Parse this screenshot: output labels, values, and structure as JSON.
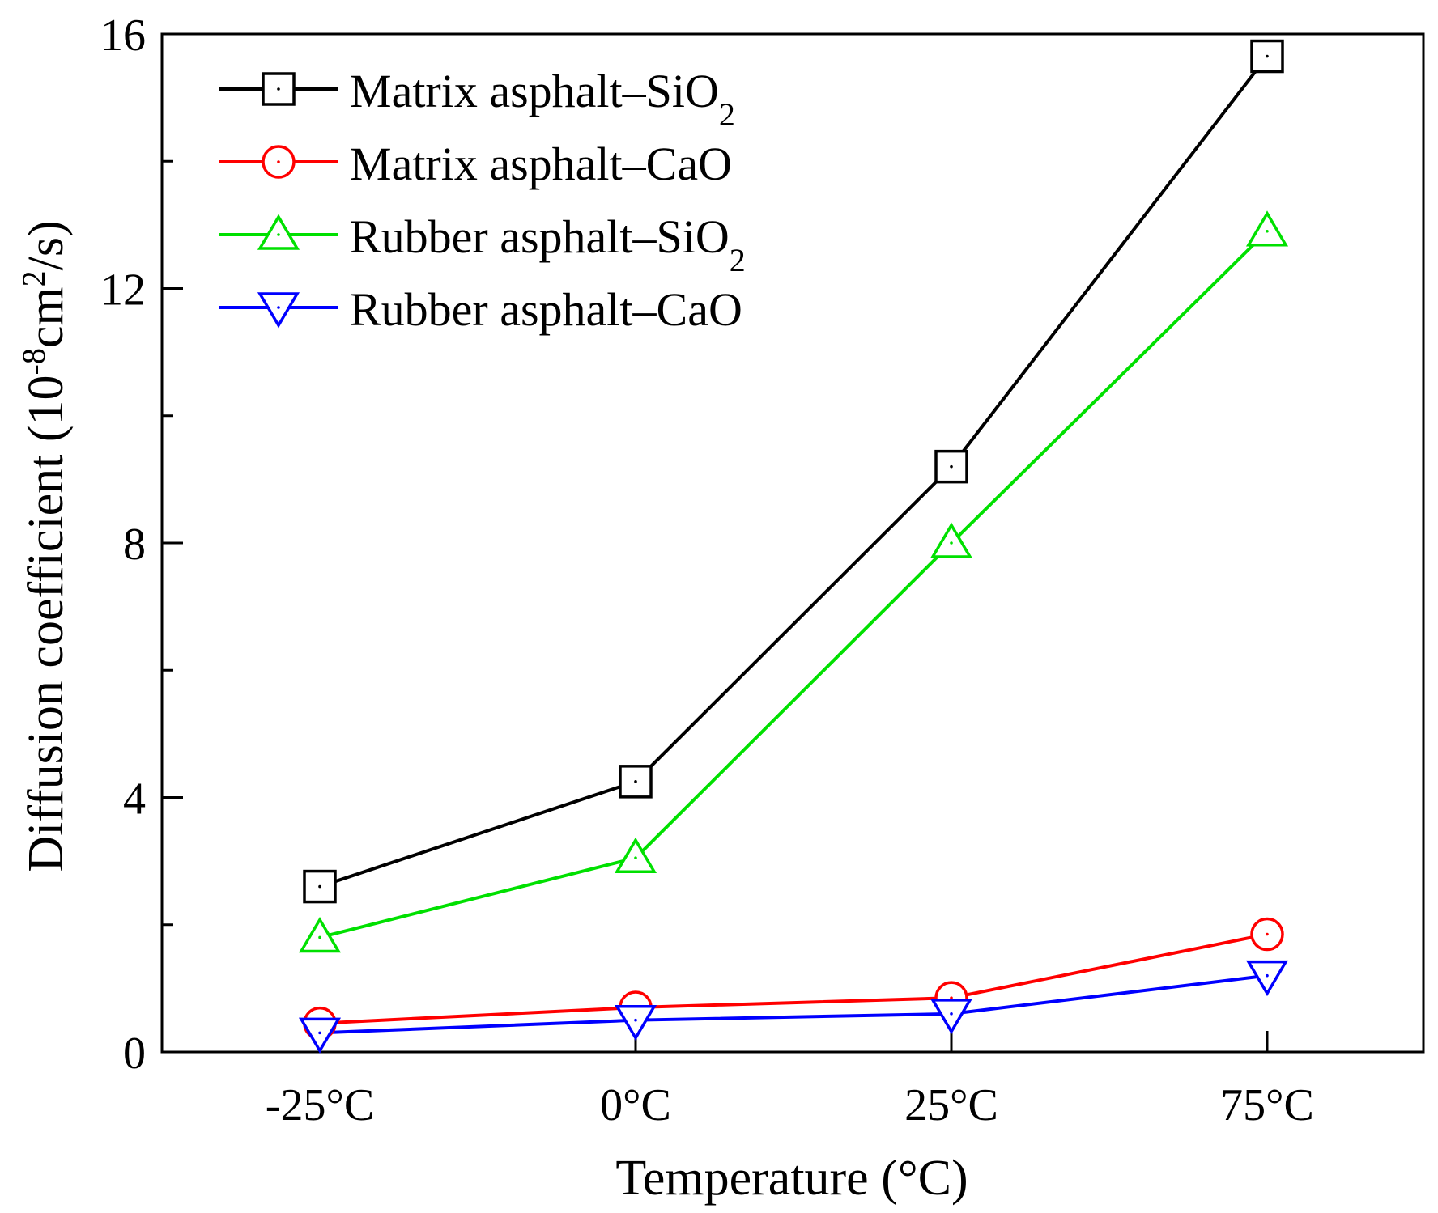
{
  "chart_data": {
    "type": "line",
    "title": "",
    "xlabel": "Temperature (°C)",
    "ylabel": "Diffusion coefficient (10",
    "ylabel_exp1": "-8",
    "ylabel_mid": "cm",
    "ylabel_exp2": "2",
    "ylabel_end": "/s)",
    "categories": [
      "-25°C",
      "0°C",
      "25°C",
      "75°C"
    ],
    "ylim": [
      0,
      16
    ],
    "yticks": [
      "0",
      "4",
      "8",
      "12",
      "16"
    ],
    "legend_position": "top-left",
    "series": [
      {
        "name": "Matrix asphalt–SiO",
        "subscript": "2",
        "color": "#000000",
        "marker": "square",
        "values": [
          2.6,
          4.25,
          9.2,
          15.65
        ]
      },
      {
        "name": "Matrix asphalt–CaO",
        "subscript": "",
        "color": "#ff0000",
        "marker": "circle",
        "values": [
          0.45,
          0.7,
          0.85,
          1.85
        ]
      },
      {
        "name": "Rubber asphalt–SiO",
        "subscript": "2",
        "color": "#00e000",
        "marker": "triangle-up",
        "values": [
          1.8,
          3.05,
          8.0,
          12.9
        ]
      },
      {
        "name": "Rubber asphalt–CaO",
        "subscript": "",
        "color": "#0000ff",
        "marker": "triangle-down",
        "values": [
          0.3,
          0.5,
          0.6,
          1.2
        ]
      }
    ]
  }
}
